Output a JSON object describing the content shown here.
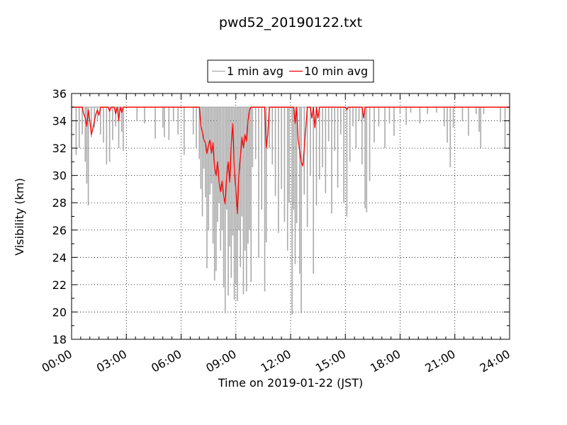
{
  "chart_data": {
    "type": "line",
    "title": "pwd52_20190122.txt",
    "xlabel": "Time on 2019-01-22 (JST)",
    "ylabel": "Visibility (km)",
    "xlim": [
      "00:00",
      "24:00"
    ],
    "ylim": [
      18,
      36
    ],
    "x_ticks": [
      "00:00",
      "03:00",
      "06:00",
      "09:00",
      "12:00",
      "15:00",
      "18:00",
      "21:00",
      "24:00"
    ],
    "y_ticks": [
      "18",
      "20",
      "22",
      "24",
      "26",
      "28",
      "30",
      "32",
      "34",
      "36"
    ],
    "grid": true,
    "legend": "top-center",
    "series": [
      {
        "name": "1 min avg",
        "color": "#aaaaaa",
        "dips": [
          [
            "00:15",
            31.5
          ],
          [
            "00:25",
            32.0
          ],
          [
            "00:35",
            33.0
          ],
          [
            "00:45",
            31.0
          ],
          [
            "00:50",
            29.4
          ],
          [
            "00:55",
            27.8
          ],
          [
            "01:05",
            32.8
          ],
          [
            "01:15",
            33.5
          ],
          [
            "01:25",
            34.0
          ],
          [
            "01:35",
            33.0
          ],
          [
            "01:45",
            32.4
          ],
          [
            "01:55",
            30.8
          ],
          [
            "02:05",
            31.0
          ],
          [
            "02:15",
            32.6
          ],
          [
            "02:25",
            33.6
          ],
          [
            "02:35",
            32.0
          ],
          [
            "02:45",
            33.2
          ],
          [
            "02:50",
            31.8
          ],
          [
            "03:35",
            34.0
          ],
          [
            "04:00",
            33.8
          ],
          [
            "04:35",
            32.7
          ],
          [
            "05:00",
            33.5
          ],
          [
            "05:05",
            32.8
          ],
          [
            "05:20",
            32.6
          ],
          [
            "05:35",
            34.0
          ],
          [
            "05:50",
            33.0
          ],
          [
            "06:10",
            31.5
          ],
          [
            "06:40",
            33.0
          ],
          [
            "06:50",
            32.0
          ],
          [
            "07:00",
            31.2
          ],
          [
            "07:05",
            29.0
          ],
          [
            "07:10",
            27.0
          ],
          [
            "07:15",
            30.5
          ],
          [
            "07:20",
            28.4
          ],
          [
            "07:25",
            23.2
          ],
          [
            "07:30",
            26.0
          ],
          [
            "07:35",
            28.6
          ],
          [
            "07:40",
            29.4
          ],
          [
            "07:45",
            25.0
          ],
          [
            "07:50",
            22.3
          ],
          [
            "07:55",
            23.0
          ],
          [
            "08:00",
            26.6
          ],
          [
            "08:05",
            28.0
          ],
          [
            "08:10",
            24.5
          ],
          [
            "08:15",
            26.0
          ],
          [
            "08:20",
            21.8
          ],
          [
            "08:25",
            19.9
          ],
          [
            "08:30",
            27.5
          ],
          [
            "08:35",
            21.2
          ],
          [
            "08:40",
            24.8
          ],
          [
            "08:45",
            22.5
          ],
          [
            "08:50",
            25.6
          ],
          [
            "08:55",
            20.9
          ],
          [
            "09:00",
            22.0
          ],
          [
            "09:05",
            20.8
          ],
          [
            "09:10",
            26.0
          ],
          [
            "09:15",
            23.3
          ],
          [
            "09:20",
            27.0
          ],
          [
            "09:25",
            21.3
          ],
          [
            "09:30",
            24.5
          ],
          [
            "09:35",
            21.5
          ],
          [
            "09:40",
            25.0
          ],
          [
            "09:45",
            26.0
          ],
          [
            "09:50",
            22.2
          ],
          [
            "09:55",
            30.6
          ],
          [
            "10:05",
            31.2
          ],
          [
            "10:15",
            24.0
          ],
          [
            "10:25",
            27.5
          ],
          [
            "10:35",
            21.5
          ],
          [
            "10:40",
            25.1
          ],
          [
            "10:50",
            32.0
          ],
          [
            "11:00",
            30.8
          ],
          [
            "11:10",
            28.5
          ],
          [
            "11:20",
            25.8
          ],
          [
            "11:30",
            29.0
          ],
          [
            "11:40",
            26.6
          ],
          [
            "11:50",
            24.5
          ],
          [
            "11:55",
            28.0
          ],
          [
            "12:05",
            19.8
          ],
          [
            "12:10",
            27.5
          ],
          [
            "12:15",
            23.5
          ],
          [
            "12:20",
            26.5
          ],
          [
            "12:30",
            22.8
          ],
          [
            "12:35",
            19.9
          ],
          [
            "12:45",
            28.6
          ],
          [
            "12:55",
            26.2
          ],
          [
            "13:05",
            30.0
          ],
          [
            "13:15",
            22.8
          ],
          [
            "13:25",
            27.8
          ],
          [
            "13:35",
            29.7
          ],
          [
            "13:45",
            30.6
          ],
          [
            "13:55",
            28.7
          ],
          [
            "14:05",
            32.5
          ],
          [
            "14:15",
            27.2
          ],
          [
            "14:25",
            31.8
          ],
          [
            "14:35",
            29.1
          ],
          [
            "14:45",
            33.0
          ],
          [
            "14:55",
            28.0
          ],
          [
            "15:05",
            27.0
          ],
          [
            "15:15",
            31.0
          ],
          [
            "15:25",
            33.6
          ],
          [
            "15:35",
            32.0
          ],
          [
            "15:45",
            34.0
          ],
          [
            "15:55",
            30.8
          ],
          [
            "16:05",
            27.6
          ],
          [
            "16:10",
            27.3
          ],
          [
            "16:20",
            29.6
          ],
          [
            "16:35",
            32.4
          ],
          [
            "16:50",
            33.6
          ],
          [
            "17:10",
            32.0
          ],
          [
            "17:25",
            33.8
          ],
          [
            "17:40",
            32.9
          ],
          [
            "18:00",
            34.5
          ],
          [
            "18:20",
            33.7
          ],
          [
            "18:35",
            34.6
          ],
          [
            "19:05",
            33.8
          ],
          [
            "19:30",
            34.5
          ],
          [
            "20:00",
            34.6
          ],
          [
            "20:25",
            33.6
          ],
          [
            "20:35",
            32.4
          ],
          [
            "20:45",
            30.6
          ],
          [
            "20:55",
            33.5
          ],
          [
            "21:25",
            34.0
          ],
          [
            "21:45",
            32.9
          ],
          [
            "22:10",
            34.5
          ],
          [
            "22:20",
            33.2
          ],
          [
            "22:25",
            32.0
          ],
          [
            "22:35",
            34.5
          ],
          [
            "23:30",
            33.9
          ],
          [
            "23:45",
            32.0
          ]
        ]
      },
      {
        "name": "10 min avg",
        "color": "#ff0000",
        "dips": [
          [
            "00:40",
            34.5
          ],
          [
            "00:45",
            34.2
          ],
          [
            "00:50",
            33.6
          ],
          [
            "00:55",
            34.8
          ],
          [
            "01:00",
            34.0
          ],
          [
            "01:05",
            33.0
          ],
          [
            "01:10",
            33.4
          ],
          [
            "01:15",
            34.0
          ],
          [
            "01:20",
            34.5
          ],
          [
            "01:25",
            34.8
          ],
          [
            "01:30",
            34.4
          ],
          [
            "01:35",
            35.0
          ],
          [
            "02:05",
            34.7
          ],
          [
            "02:25",
            34.5
          ],
          [
            "02:35",
            34.0
          ],
          [
            "02:45",
            34.6
          ],
          [
            "07:05",
            33.6
          ],
          [
            "07:10",
            33.2
          ],
          [
            "07:15",
            32.6
          ],
          [
            "07:20",
            32.4
          ],
          [
            "07:25",
            31.6
          ],
          [
            "07:30",
            32.2
          ],
          [
            "07:35",
            32.6
          ],
          [
            "07:40",
            31.6
          ],
          [
            "07:45",
            32.4
          ],
          [
            "07:50",
            30.6
          ],
          [
            "07:55",
            30.0
          ],
          [
            "08:00",
            31.0
          ],
          [
            "08:05",
            29.5
          ],
          [
            "08:10",
            28.8
          ],
          [
            "08:15",
            29.6
          ],
          [
            "08:20",
            28.5
          ],
          [
            "08:25",
            27.9
          ],
          [
            "08:30",
            30.0
          ],
          [
            "08:35",
            31.0
          ],
          [
            "08:40",
            29.5
          ],
          [
            "08:45",
            32.3
          ],
          [
            "08:50",
            33.8
          ],
          [
            "08:55",
            30.5
          ],
          [
            "09:00",
            29.0
          ],
          [
            "09:05",
            27.2
          ],
          [
            "09:10",
            30.0
          ],
          [
            "09:15",
            31.4
          ],
          [
            "09:20",
            32.8
          ],
          [
            "09:25",
            32.0
          ],
          [
            "09:30",
            33.0
          ],
          [
            "09:35",
            32.5
          ],
          [
            "09:40",
            34.0
          ],
          [
            "09:45",
            34.8
          ],
          [
            "10:40",
            32.0
          ],
          [
            "10:45",
            33.0
          ],
          [
            "12:15",
            33.8
          ],
          [
            "12:25",
            32.6
          ],
          [
            "12:30",
            31.8
          ],
          [
            "12:35",
            31.0
          ],
          [
            "12:40",
            30.7
          ],
          [
            "12:45",
            32.0
          ],
          [
            "12:50",
            33.5
          ],
          [
            "13:10",
            34.2
          ],
          [
            "13:20",
            33.5
          ],
          [
            "13:30",
            34.2
          ],
          [
            "15:05",
            34.8
          ],
          [
            "16:00",
            34.2
          ]
        ]
      }
    ]
  }
}
